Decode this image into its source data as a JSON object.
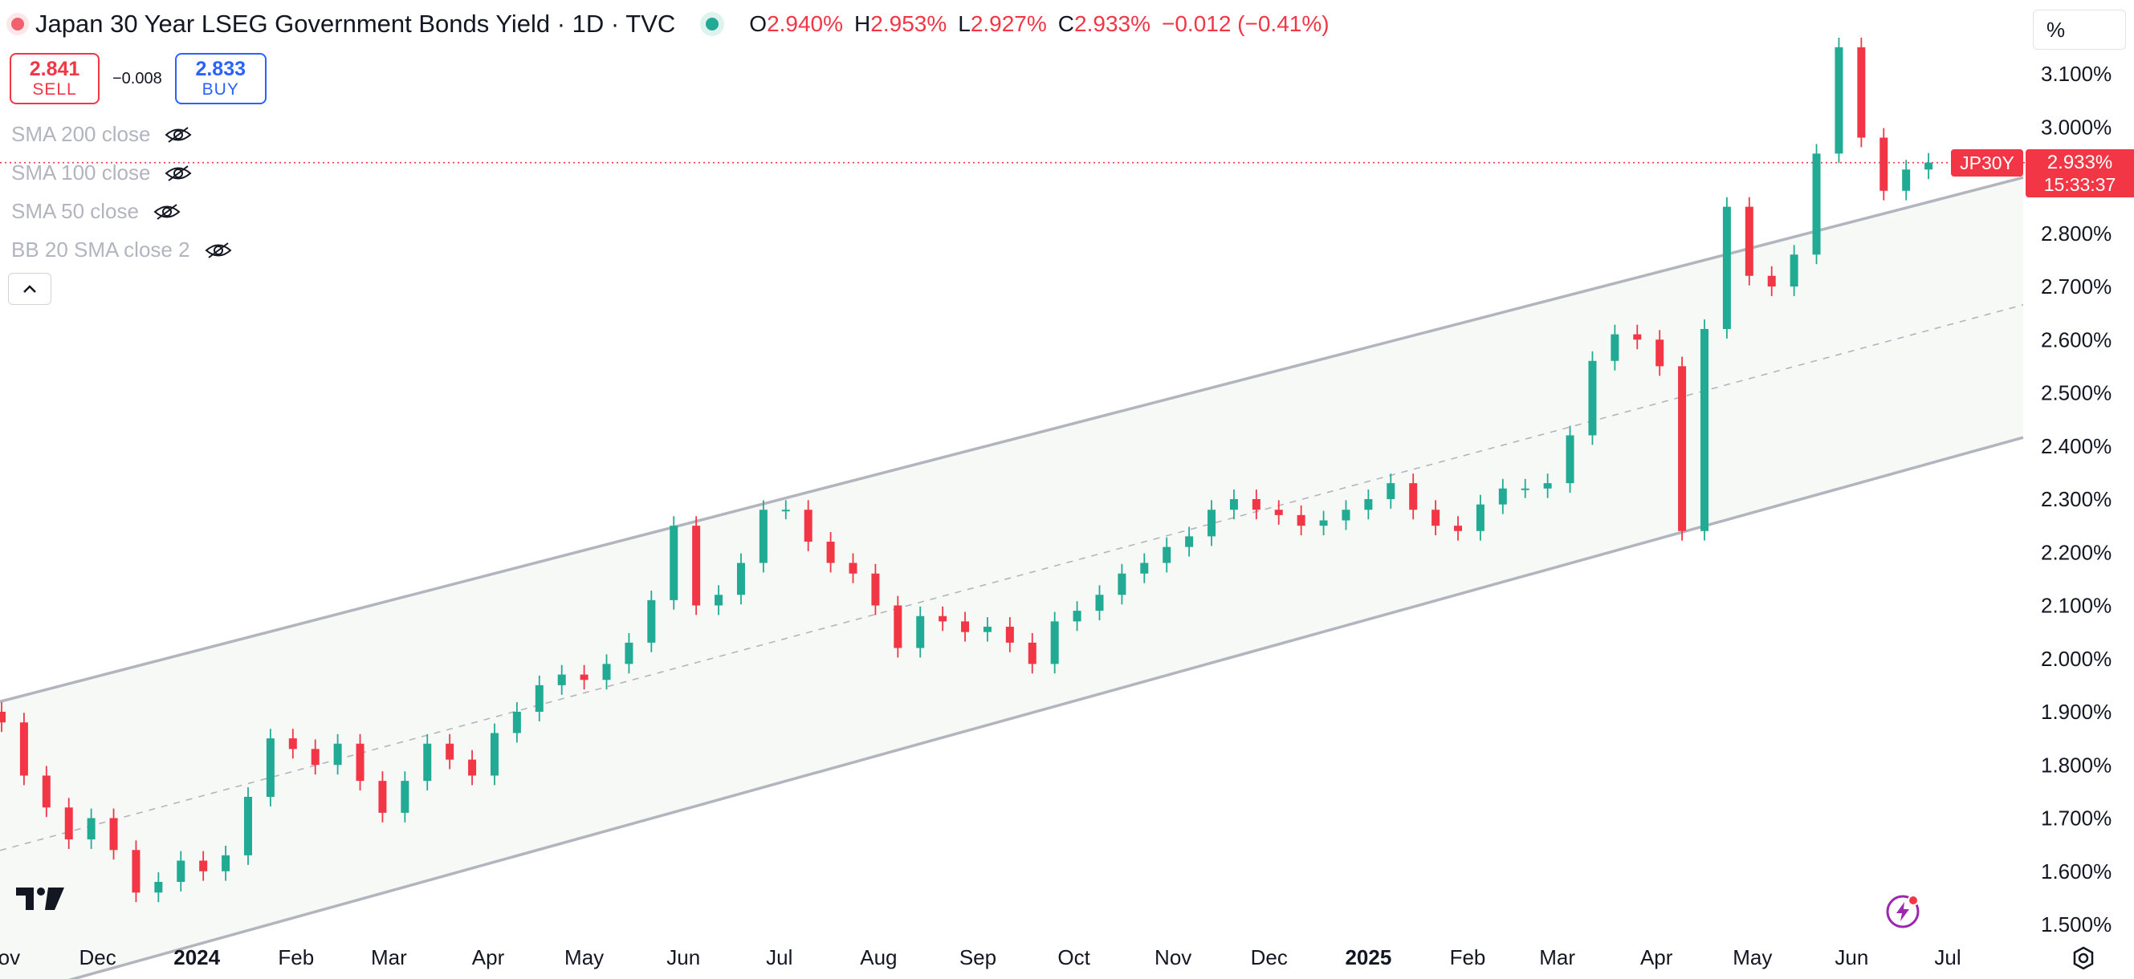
{
  "header": {
    "title": "Japan 30 Year LSEG Government Bonds Yield · 1D · TVC",
    "ohlc": [
      {
        "k": "O",
        "v": "2.940%"
      },
      {
        "k": "H",
        "v": "2.953%"
      },
      {
        "k": "L",
        "v": "2.927%"
      },
      {
        "k": "C",
        "v": "2.933%"
      }
    ],
    "change": "−0.012 (−0.41%)"
  },
  "trade": {
    "sell_price": "2.841",
    "sell_label": "SELL",
    "spread": "−0.008",
    "buy_price": "2.833",
    "buy_label": "BUY"
  },
  "indicators": [
    "SMA 200 close",
    "SMA 100 close",
    "SMA 50 close",
    "BB 20 SMA close 2"
  ],
  "scale_label": "%",
  "last_price": {
    "symbol": "JP30Y",
    "price": "2.933%",
    "countdown": "15:33:37"
  },
  "colors": {
    "up": "#22ab94",
    "down": "#f23645",
    "channel": "#b2b5be",
    "fill": "#f6f9f6"
  },
  "chart_data": {
    "type": "candlestick",
    "title": "Japan 30 Year LSEG Government Bonds Yield · 1D · TVC",
    "y_unit": "%",
    "ylim": [
      1.45,
      3.21
    ],
    "y_ticks": [
      "3.100%",
      "3.000%",
      "2.900%",
      "2.800%",
      "2.700%",
      "2.600%",
      "2.500%",
      "2.400%",
      "2.300%",
      "2.200%",
      "2.100%",
      "2.000%",
      "1.900%",
      "1.800%",
      "1.700%",
      "1.600%",
      "1.500%"
    ],
    "x_ticks": [
      {
        "label": "Nov",
        "date": "2023-11-01",
        "bold": false
      },
      {
        "label": "Dec",
        "date": "2023-12-01",
        "bold": false
      },
      {
        "label": "2024",
        "date": "2024-01-01",
        "bold": true
      },
      {
        "label": "Feb",
        "date": "2024-02-01",
        "bold": false
      },
      {
        "label": "Mar",
        "date": "2024-03-01",
        "bold": false
      },
      {
        "label": "Apr",
        "date": "2024-04-01",
        "bold": false
      },
      {
        "label": "May",
        "date": "2024-05-01",
        "bold": false
      },
      {
        "label": "Jun",
        "date": "2024-06-01",
        "bold": false
      },
      {
        "label": "Jul",
        "date": "2024-07-01",
        "bold": false
      },
      {
        "label": "Aug",
        "date": "2024-08-01",
        "bold": false
      },
      {
        "label": "Sep",
        "date": "2024-09-01",
        "bold": false
      },
      {
        "label": "Oct",
        "date": "2024-10-01",
        "bold": false
      },
      {
        "label": "Nov",
        "date": "2024-11-01",
        "bold": false
      },
      {
        "label": "Dec",
        "date": "2024-12-01",
        "bold": false
      },
      {
        "label": "2025",
        "date": "2025-01-01",
        "bold": true
      },
      {
        "label": "Feb",
        "date": "2025-02-01",
        "bold": false
      },
      {
        "label": "Mar",
        "date": "2025-03-01",
        "bold": false
      },
      {
        "label": "Apr",
        "date": "2025-04-01",
        "bold": false
      },
      {
        "label": "May",
        "date": "2025-05-01",
        "bold": false
      },
      {
        "label": "Jun",
        "date": "2025-06-01",
        "bold": false
      },
      {
        "label": "Jul",
        "date": "2025-07-01",
        "bold": false
      }
    ],
    "closes": [
      {
        "date": "2023-11-01",
        "close": 1.88
      },
      {
        "date": "2023-11-08",
        "close": 1.78
      },
      {
        "date": "2023-11-15",
        "close": 1.72
      },
      {
        "date": "2023-11-22",
        "close": 1.66
      },
      {
        "date": "2023-11-29",
        "close": 1.7
      },
      {
        "date": "2023-12-06",
        "close": 1.64
      },
      {
        "date": "2023-12-13",
        "close": 1.56
      },
      {
        "date": "2023-12-20",
        "close": 1.58
      },
      {
        "date": "2023-12-27",
        "close": 1.62
      },
      {
        "date": "2024-01-03",
        "close": 1.6
      },
      {
        "date": "2024-01-10",
        "close": 1.63
      },
      {
        "date": "2024-01-17",
        "close": 1.74
      },
      {
        "date": "2024-01-24",
        "close": 1.85
      },
      {
        "date": "2024-01-31",
        "close": 1.83
      },
      {
        "date": "2024-02-07",
        "close": 1.8
      },
      {
        "date": "2024-02-14",
        "close": 1.84
      },
      {
        "date": "2024-02-21",
        "close": 1.77
      },
      {
        "date": "2024-02-28",
        "close": 1.71
      },
      {
        "date": "2024-03-06",
        "close": 1.77
      },
      {
        "date": "2024-03-13",
        "close": 1.84
      },
      {
        "date": "2024-03-20",
        "close": 1.81
      },
      {
        "date": "2024-03-27",
        "close": 1.78
      },
      {
        "date": "2024-04-03",
        "close": 1.86
      },
      {
        "date": "2024-04-10",
        "close": 1.9
      },
      {
        "date": "2024-04-17",
        "close": 1.95
      },
      {
        "date": "2024-04-24",
        "close": 1.97
      },
      {
        "date": "2024-05-01",
        "close": 1.96
      },
      {
        "date": "2024-05-08",
        "close": 1.99
      },
      {
        "date": "2024-05-15",
        "close": 2.03
      },
      {
        "date": "2024-05-22",
        "close": 2.11
      },
      {
        "date": "2024-05-29",
        "close": 2.25
      },
      {
        "date": "2024-06-05",
        "close": 2.1
      },
      {
        "date": "2024-06-12",
        "close": 2.12
      },
      {
        "date": "2024-06-19",
        "close": 2.18
      },
      {
        "date": "2024-06-26",
        "close": 2.28
      },
      {
        "date": "2024-07-03",
        "close": 2.28
      },
      {
        "date": "2024-07-10",
        "close": 2.22
      },
      {
        "date": "2024-07-17",
        "close": 2.18
      },
      {
        "date": "2024-07-24",
        "close": 2.16
      },
      {
        "date": "2024-07-31",
        "close": 2.1
      },
      {
        "date": "2024-08-07",
        "close": 2.02
      },
      {
        "date": "2024-08-14",
        "close": 2.08
      },
      {
        "date": "2024-08-21",
        "close": 2.07
      },
      {
        "date": "2024-08-28",
        "close": 2.05
      },
      {
        "date": "2024-09-04",
        "close": 2.06
      },
      {
        "date": "2024-09-11",
        "close": 2.03
      },
      {
        "date": "2024-09-18",
        "close": 1.99
      },
      {
        "date": "2024-09-25",
        "close": 2.07
      },
      {
        "date": "2024-10-02",
        "close": 2.09
      },
      {
        "date": "2024-10-09",
        "close": 2.12
      },
      {
        "date": "2024-10-16",
        "close": 2.16
      },
      {
        "date": "2024-10-23",
        "close": 2.18
      },
      {
        "date": "2024-10-30",
        "close": 2.21
      },
      {
        "date": "2024-11-06",
        "close": 2.23
      },
      {
        "date": "2024-11-13",
        "close": 2.28
      },
      {
        "date": "2024-11-20",
        "close": 2.3
      },
      {
        "date": "2024-11-27",
        "close": 2.28
      },
      {
        "date": "2024-12-04",
        "close": 2.27
      },
      {
        "date": "2024-12-11",
        "close": 2.25
      },
      {
        "date": "2024-12-18",
        "close": 2.26
      },
      {
        "date": "2024-12-25",
        "close": 2.28
      },
      {
        "date": "2025-01-01",
        "close": 2.3
      },
      {
        "date": "2025-01-08",
        "close": 2.33
      },
      {
        "date": "2025-01-15",
        "close": 2.28
      },
      {
        "date": "2025-01-22",
        "close": 2.25
      },
      {
        "date": "2025-01-29",
        "close": 2.24
      },
      {
        "date": "2025-02-05",
        "close": 2.29
      },
      {
        "date": "2025-02-12",
        "close": 2.32
      },
      {
        "date": "2025-02-19",
        "close": 2.32
      },
      {
        "date": "2025-02-26",
        "close": 2.33
      },
      {
        "date": "2025-03-05",
        "close": 2.42
      },
      {
        "date": "2025-03-12",
        "close": 2.56
      },
      {
        "date": "2025-03-19",
        "close": 2.61
      },
      {
        "date": "2025-03-26",
        "close": 2.6
      },
      {
        "date": "2025-04-02",
        "close": 2.55
      },
      {
        "date": "2025-04-09",
        "close": 2.24
      },
      {
        "date": "2025-04-16",
        "close": 2.62
      },
      {
        "date": "2025-04-23",
        "close": 2.85
      },
      {
        "date": "2025-04-30",
        "close": 2.72
      },
      {
        "date": "2025-05-07",
        "close": 2.7
      },
      {
        "date": "2025-05-14",
        "close": 2.76
      },
      {
        "date": "2025-05-21",
        "close": 2.95
      },
      {
        "date": "2025-05-28",
        "close": 3.15
      },
      {
        "date": "2025-06-04",
        "close": 2.98
      },
      {
        "date": "2025-06-11",
        "close": 2.88
      },
      {
        "date": "2025-06-18",
        "close": 2.92
      },
      {
        "date": "2025-06-25",
        "close": 2.933
      }
    ],
    "channel": {
      "start": "2023-11-01",
      "end": "2025-07-15",
      "upper": [
        1.92,
        2.89
      ],
      "mid": [
        1.64,
        2.65
      ],
      "lower": [
        1.36,
        2.4
      ]
    }
  }
}
